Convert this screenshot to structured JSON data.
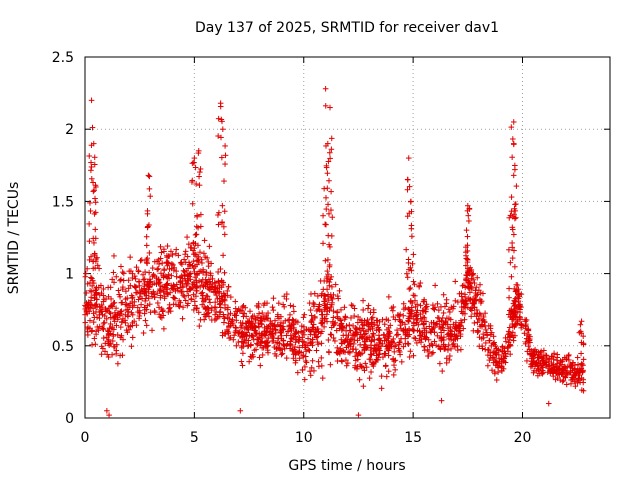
{
  "chart_data": {
    "type": "scatter",
    "title": "Day 137 of 2025, SRMTID for receiver dav1",
    "xlabel": "GPS time / hours",
    "ylabel": "SRMTID / TECUs",
    "xlim": [
      0,
      24
    ],
    "ylim": [
      0,
      2.5
    ],
    "x_ticks": [
      0,
      5,
      10,
      15,
      20
    ],
    "x_tick_labels": [
      "0",
      "5",
      "10",
      "15",
      "20"
    ],
    "y_ticks": [
      0,
      0.5,
      1,
      1.5,
      2,
      2.5
    ],
    "y_tick_labels": [
      "0",
      "0.5",
      "1",
      "1.5",
      "2",
      "2.5"
    ],
    "grid": true,
    "marker": "+",
    "color": "#e00000",
    "series": [
      {
        "name": "dav1",
        "envelope": [
          {
            "hour": 0.0,
            "level": 0.85,
            "spread": 0.35
          },
          {
            "hour": 0.5,
            "level": 0.75,
            "spread": 0.4
          },
          {
            "hour": 1.0,
            "level": 0.65,
            "spread": 0.4
          },
          {
            "hour": 2.0,
            "level": 0.8,
            "spread": 0.35
          },
          {
            "hour": 3.0,
            "level": 0.9,
            "spread": 0.3
          },
          {
            "hour": 4.0,
            "level": 0.95,
            "spread": 0.3
          },
          {
            "hour": 5.0,
            "level": 1.0,
            "spread": 0.35
          },
          {
            "hour": 6.0,
            "level": 0.85,
            "spread": 0.3
          },
          {
            "hour": 7.0,
            "level": 0.6,
            "spread": 0.25
          },
          {
            "hour": 8.0,
            "level": 0.6,
            "spread": 0.25
          },
          {
            "hour": 9.0,
            "level": 0.6,
            "spread": 0.25
          },
          {
            "hour": 10.0,
            "level": 0.5,
            "spread": 0.3
          },
          {
            "hour": 11.0,
            "level": 0.75,
            "spread": 0.4
          },
          {
            "hour": 12.0,
            "level": 0.55,
            "spread": 0.3
          },
          {
            "hour": 13.0,
            "level": 0.55,
            "spread": 0.3
          },
          {
            "hour": 14.0,
            "level": 0.5,
            "spread": 0.3
          },
          {
            "hour": 15.0,
            "level": 0.7,
            "spread": 0.3
          },
          {
            "hour": 16.0,
            "level": 0.6,
            "spread": 0.3
          },
          {
            "hour": 17.0,
            "level": 0.6,
            "spread": 0.3
          },
          {
            "hour": 17.5,
            "level": 0.95,
            "spread": 0.3
          },
          {
            "hour": 18.5,
            "level": 0.5,
            "spread": 0.25
          },
          {
            "hour": 19.0,
            "level": 0.35,
            "spread": 0.15
          },
          {
            "hour": 19.8,
            "level": 0.8,
            "spread": 0.25
          },
          {
            "hour": 20.5,
            "level": 0.4,
            "spread": 0.15
          },
          {
            "hour": 21.5,
            "level": 0.35,
            "spread": 0.15
          },
          {
            "hour": 22.8,
            "level": 0.3,
            "spread": 0.12
          }
        ],
        "peaks": [
          {
            "hour": 0.3,
            "value": 2.2
          },
          {
            "hour": 0.4,
            "value": 1.9
          },
          {
            "hour": 0.5,
            "value": 1.6
          },
          {
            "hour": 2.9,
            "value": 1.68
          },
          {
            "hour": 5.0,
            "value": 1.8
          },
          {
            "hour": 5.2,
            "value": 1.85
          },
          {
            "hour": 6.2,
            "value": 2.18
          },
          {
            "hour": 6.3,
            "value": 2.0
          },
          {
            "hour": 11.0,
            "value": 2.28
          },
          {
            "hour": 11.2,
            "value": 2.15
          },
          {
            "hour": 11.1,
            "value": 1.9
          },
          {
            "hour": 14.8,
            "value": 1.8
          },
          {
            "hour": 14.9,
            "value": 1.5
          },
          {
            "hour": 17.5,
            "value": 1.47
          },
          {
            "hour": 19.6,
            "value": 2.05
          },
          {
            "hour": 19.6,
            "value": 1.9
          },
          {
            "hour": 19.5,
            "value": 1.53
          },
          {
            "hour": 22.7,
            "value": 0.67
          }
        ],
        "lows": [
          {
            "hour": 1.0,
            "value": 0.05
          },
          {
            "hour": 1.1,
            "value": 0.02
          },
          {
            "hour": 7.1,
            "value": 0.05
          },
          {
            "hour": 12.5,
            "value": 0.02
          },
          {
            "hour": 16.3,
            "value": 0.12
          },
          {
            "hour": 21.2,
            "value": 0.1
          }
        ]
      }
    ]
  }
}
